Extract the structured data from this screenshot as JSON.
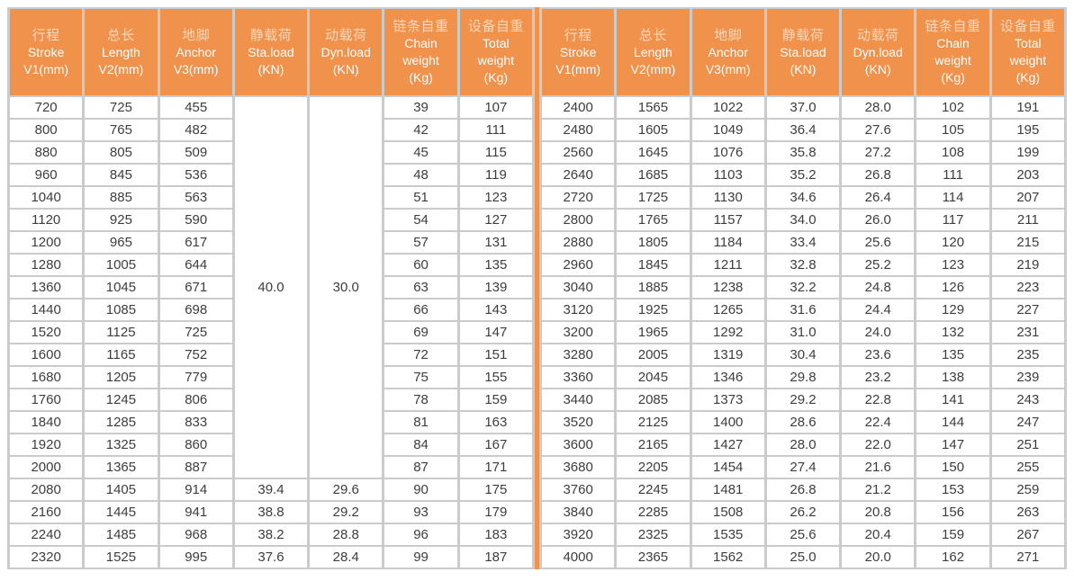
{
  "colors": {
    "header_orange": "#f0914c",
    "divider_orange": "#f0914c",
    "header_text_en": "#ffffff",
    "header_text_zh": "#fad9bd",
    "grid_gray": "#cbcbcb",
    "cell_text": "#3d3d3d",
    "cell_bg": "#ffffff"
  },
  "chart_data": {
    "type": "table",
    "layout": "two mirrored halves of 7 columns separated by an orange vertical divider; 21 data rows per half; Sta.load and Dyn.load merged across first 17 rows of left half",
    "columns": [
      {
        "key": "stroke",
        "zh": "行程",
        "lines": [
          "Stroke",
          "V1(mm)"
        ]
      },
      {
        "key": "length",
        "zh": "总长",
        "lines": [
          "Length",
          "V2(mm)"
        ]
      },
      {
        "key": "anchor",
        "zh": "地脚",
        "lines": [
          "Anchor",
          "V3(mm)"
        ]
      },
      {
        "key": "sta-load",
        "zh": "静载荷",
        "lines": [
          "Sta.load",
          "(KN)"
        ]
      },
      {
        "key": "dyn-load",
        "zh": "动载荷",
        "lines": [
          "Dyn.load",
          "(KN)"
        ]
      },
      {
        "key": "chain-weight",
        "zh": "链条自重",
        "lines": [
          "Chain",
          "weight",
          "(Kg)"
        ]
      },
      {
        "key": "total-weight",
        "zh": "设备自重",
        "lines": [
          "Total",
          "weight",
          "(Kg)"
        ]
      }
    ],
    "left": {
      "merged_rowspan": 17,
      "merged_note": "Sta.load 40.0 and Dyn.load 30.0 span rows 720 through 2000",
      "rows": [
        [
          "720",
          "725",
          "455",
          "40.0",
          "30.0",
          "39",
          "107"
        ],
        [
          "800",
          "765",
          "482",
          null,
          null,
          "42",
          "111"
        ],
        [
          "880",
          "805",
          "509",
          null,
          null,
          "45",
          "115"
        ],
        [
          "960",
          "845",
          "536",
          null,
          null,
          "48",
          "119"
        ],
        [
          "1040",
          "885",
          "563",
          null,
          null,
          "51",
          "123"
        ],
        [
          "1120",
          "925",
          "590",
          null,
          null,
          "54",
          "127"
        ],
        [
          "1200",
          "965",
          "617",
          null,
          null,
          "57",
          "131"
        ],
        [
          "1280",
          "1005",
          "644",
          null,
          null,
          "60",
          "135"
        ],
        [
          "1360",
          "1045",
          "671",
          null,
          null,
          "63",
          "139"
        ],
        [
          "1440",
          "1085",
          "698",
          null,
          null,
          "66",
          "143"
        ],
        [
          "1520",
          "1125",
          "725",
          null,
          null,
          "69",
          "147"
        ],
        [
          "1600",
          "1165",
          "752",
          null,
          null,
          "72",
          "151"
        ],
        [
          "1680",
          "1205",
          "779",
          null,
          null,
          "75",
          "155"
        ],
        [
          "1760",
          "1245",
          "806",
          null,
          null,
          "78",
          "159"
        ],
        [
          "1840",
          "1285",
          "833",
          null,
          null,
          "81",
          "163"
        ],
        [
          "1920",
          "1325",
          "860",
          null,
          null,
          "84",
          "167"
        ],
        [
          "2000",
          "1365",
          "887",
          null,
          null,
          "87",
          "171"
        ],
        [
          "2080",
          "1405",
          "914",
          "39.4",
          "29.6",
          "90",
          "175"
        ],
        [
          "2160",
          "1445",
          "941",
          "38.8",
          "29.2",
          "93",
          "179"
        ],
        [
          "2240",
          "1485",
          "968",
          "38.2",
          "28.8",
          "96",
          "183"
        ],
        [
          "2320",
          "1525",
          "995",
          "37.6",
          "28.4",
          "99",
          "187"
        ]
      ]
    },
    "right": {
      "rows": [
        [
          "2400",
          "1565",
          "1022",
          "37.0",
          "28.0",
          "102",
          "191"
        ],
        [
          "2480",
          "1605",
          "1049",
          "36.4",
          "27.6",
          "105",
          "195"
        ],
        [
          "2560",
          "1645",
          "1076",
          "35.8",
          "27.2",
          "108",
          "199"
        ],
        [
          "2640",
          "1685",
          "1103",
          "35.2",
          "26.8",
          "111",
          "203"
        ],
        [
          "2720",
          "1725",
          "1130",
          "34.6",
          "26.4",
          "114",
          "207"
        ],
        [
          "2800",
          "1765",
          "1157",
          "34.0",
          "26.0",
          "117",
          "211"
        ],
        [
          "2880",
          "1805",
          "1184",
          "33.4",
          "25.6",
          "120",
          "215"
        ],
        [
          "2960",
          "1845",
          "1211",
          "32.8",
          "25.2",
          "123",
          "219"
        ],
        [
          "3040",
          "1885",
          "1238",
          "32.2",
          "24.8",
          "126",
          "223"
        ],
        [
          "3120",
          "1925",
          "1265",
          "31.6",
          "24.4",
          "129",
          "227"
        ],
        [
          "3200",
          "1965",
          "1292",
          "31.0",
          "24.0",
          "132",
          "231"
        ],
        [
          "3280",
          "2005",
          "1319",
          "30.4",
          "23.6",
          "135",
          "235"
        ],
        [
          "3360",
          "2045",
          "1346",
          "29.8",
          "23.2",
          "138",
          "239"
        ],
        [
          "3440",
          "2085",
          "1373",
          "29.2",
          "22.8",
          "141",
          "243"
        ],
        [
          "3520",
          "2125",
          "1400",
          "28.6",
          "22.4",
          "144",
          "247"
        ],
        [
          "3600",
          "2165",
          "1427",
          "28.0",
          "22.0",
          "147",
          "251"
        ],
        [
          "3680",
          "2205",
          "1454",
          "27.4",
          "21.6",
          "150",
          "255"
        ],
        [
          "3760",
          "2245",
          "1481",
          "26.8",
          "21.2",
          "153",
          "259"
        ],
        [
          "3840",
          "2285",
          "1508",
          "26.2",
          "20.8",
          "156",
          "263"
        ],
        [
          "3920",
          "2325",
          "1535",
          "25.6",
          "20.4",
          "159",
          "267"
        ],
        [
          "4000",
          "2365",
          "1562",
          "25.0",
          "20.0",
          "162",
          "271"
        ]
      ]
    }
  }
}
